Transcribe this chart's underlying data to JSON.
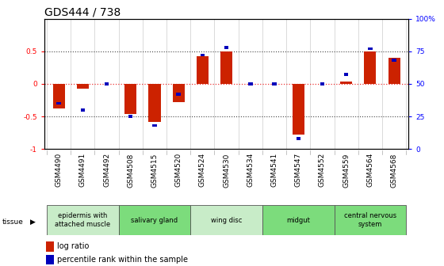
{
  "title": "GDS444 / 738",
  "samples": [
    "GSM4490",
    "GSM4491",
    "GSM4492",
    "GSM4508",
    "GSM4515",
    "GSM4520",
    "GSM4524",
    "GSM4530",
    "GSM4534",
    "GSM4541",
    "GSM4547",
    "GSM4552",
    "GSM4559",
    "GSM4564",
    "GSM4568"
  ],
  "log_ratio": [
    -0.38,
    -0.08,
    0.0,
    -0.46,
    -0.58,
    -0.28,
    0.42,
    0.5,
    0.0,
    0.0,
    -0.78,
    0.0,
    0.04,
    0.5,
    0.4
  ],
  "percentile": [
    35,
    30,
    50,
    25,
    18,
    42,
    72,
    78,
    50,
    50,
    8,
    50,
    57,
    77,
    68
  ],
  "ylim": [
    -1.0,
    1.0
  ],
  "yticks_left": [
    -1,
    -0.5,
    0,
    0.5
  ],
  "yticks_right": [
    0,
    25,
    50,
    75,
    100
  ],
  "tissue_groups": [
    {
      "label": "epidermis with\nattached muscle",
      "start": 0,
      "end": 3,
      "color": "#c8ecc8"
    },
    {
      "label": "salivary gland",
      "start": 3,
      "end": 6,
      "color": "#7cdc7c"
    },
    {
      "label": "wing disc",
      "start": 6,
      "end": 9,
      "color": "#c8ecc8"
    },
    {
      "label": "midgut",
      "start": 9,
      "end": 12,
      "color": "#7cdc7c"
    },
    {
      "label": "central nervous\nsystem",
      "start": 12,
      "end": 15,
      "color": "#7cdc7c"
    }
  ],
  "bar_color_red": "#cc2200",
  "bar_color_blue": "#0000bb",
  "bar_width": 0.5,
  "blue_bar_width": 0.18,
  "blue_bar_height": 0.045,
  "zero_line_color": "#ee3333",
  "dotted_line_color": "#444444",
  "bg_color": "#ffffff",
  "title_fontsize": 10,
  "tick_fontsize": 6.5,
  "tissue_fontsize": 6,
  "legend_fontsize": 7
}
